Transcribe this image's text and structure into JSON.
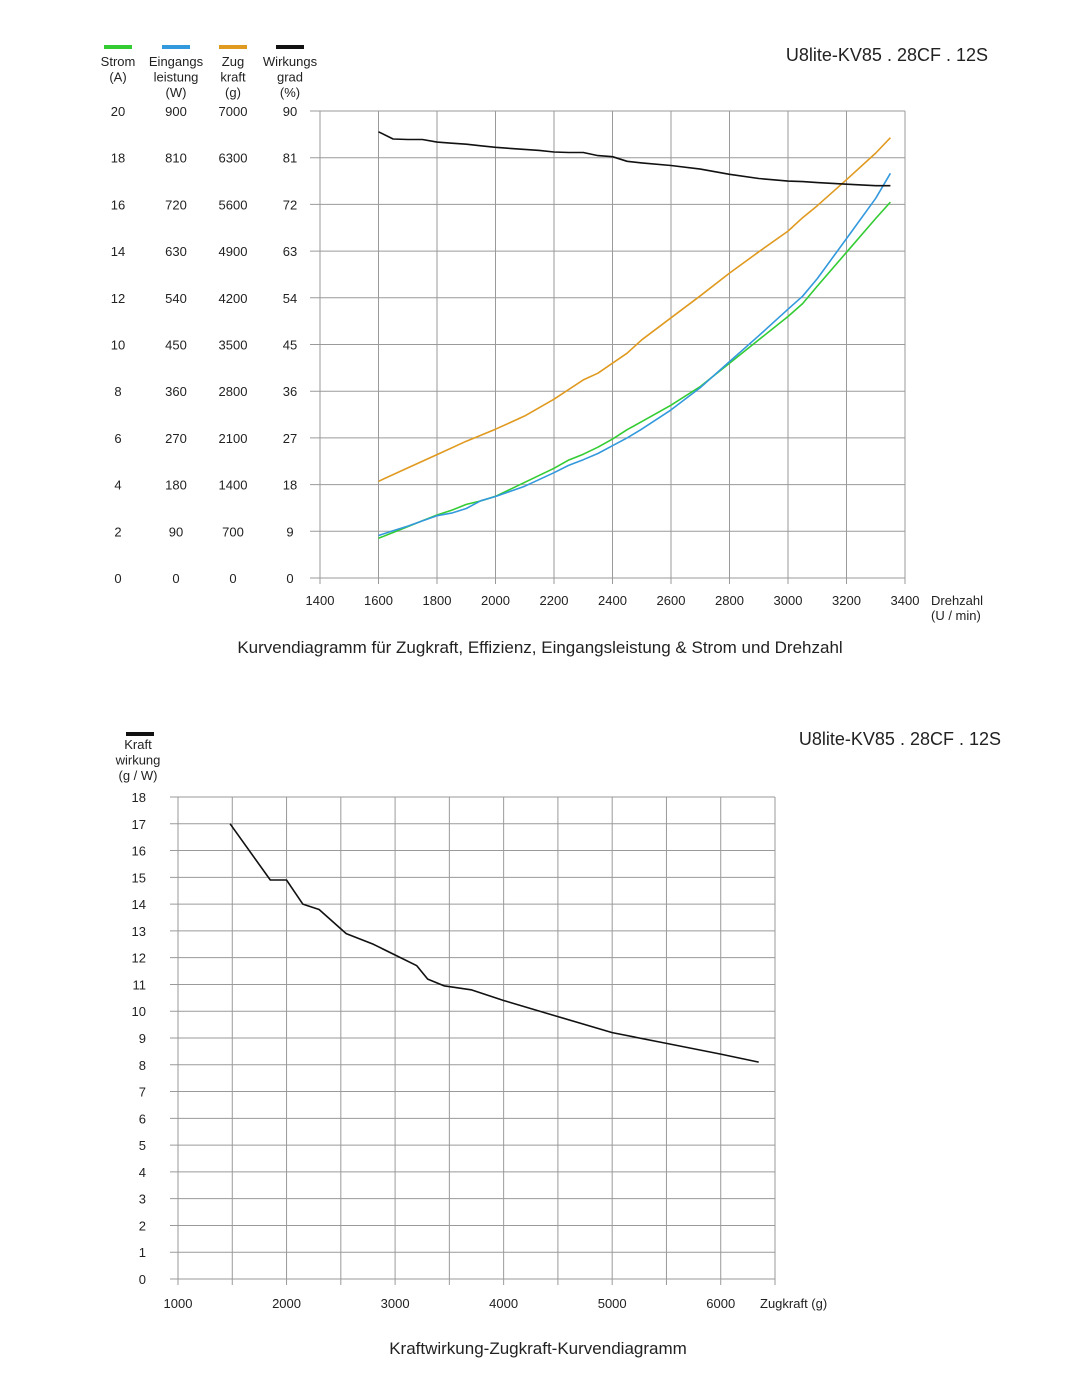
{
  "chart_data": [
    {
      "type": "line",
      "model": "U8lite-KV85 . 28CF . 12S",
      "caption": "Kurvendiagramm für Zugkraft, Effizienz, Eingangsleistung &  Strom und Drehzahl",
      "xlabel": [
        "Drehzahl",
        "(U / min)"
      ],
      "x_ticks": [
        "1400",
        "1600",
        "1800",
        "2000",
        "2200",
        "2400",
        "2600",
        "2800",
        "3000",
        "3200",
        "3400"
      ],
      "xlim": [
        1400,
        3400
      ],
      "legend_position": "top-left",
      "grid": true,
      "y_axes": [
        {
          "key": "strom",
          "header": [
            "Strom",
            "(A)"
          ],
          "color": "#33cc33",
          "max": 20,
          "ticks": [
            "20",
            "18",
            "16",
            "14",
            "12",
            "10",
            "8",
            "6",
            "4",
            "2",
            "0"
          ]
        },
        {
          "key": "eingang",
          "header": [
            "Eingangs",
            "leistung",
            "(W)"
          ],
          "color": "#3399dd",
          "max": 900,
          "ticks": [
            "900",
            "810",
            "720",
            "630",
            "540",
            "450",
            "360",
            "270",
            "180",
            "90",
            "0"
          ]
        },
        {
          "key": "zug",
          "header": [
            "Zug",
            "kraft",
            "(g)"
          ],
          "color": "#e09a20",
          "max": 7000,
          "ticks": [
            "7000",
            "6300",
            "5600",
            "4900",
            "4200",
            "3500",
            "2800",
            "2100",
            "1400",
            "700",
            "0"
          ]
        },
        {
          "key": "wirk",
          "header": [
            "Wirkungs",
            "grad",
            "(%)"
          ],
          "color": "#111111",
          "max": 90,
          "ticks": [
            "90",
            "81",
            "72",
            "63",
            "54",
            "45",
            "36",
            "27",
            "18",
            "9",
            "0"
          ]
        }
      ],
      "series": [
        {
          "axis": "strom",
          "x": [
            1600,
            1650,
            1700,
            1750,
            1800,
            1850,
            1900,
            1950,
            2000,
            2100,
            2200,
            2250,
            2300,
            2350,
            2400,
            2450,
            2500,
            2600,
            2700,
            2800,
            2900,
            3000,
            3050,
            3100,
            3200,
            3300,
            3350
          ],
          "y": [
            1.7,
            1.95,
            2.2,
            2.45,
            2.7,
            2.9,
            3.15,
            3.3,
            3.5,
            4.1,
            4.7,
            5.05,
            5.3,
            5.6,
            5.95,
            6.35,
            6.7,
            7.4,
            8.2,
            9.2,
            10.2,
            11.2,
            11.75,
            12.5,
            13.95,
            15.4,
            16.1
          ]
        },
        {
          "axis": "eingang",
          "x": [
            1600,
            1650,
            1700,
            1750,
            1800,
            1850,
            1900,
            1950,
            2000,
            2100,
            2200,
            2250,
            2300,
            2350,
            2400,
            2450,
            2500,
            2600,
            2700,
            2800,
            2900,
            3000,
            3050,
            3100,
            3200,
            3300,
            3350
          ],
          "y": [
            82,
            91,
            100,
            110,
            120,
            125,
            134,
            149,
            157,
            177,
            203,
            217,
            228,
            240,
            255,
            270,
            287,
            324,
            367,
            417,
            467,
            518,
            543,
            577,
            654,
            732,
            780
          ]
        },
        {
          "axis": "zug",
          "x": [
            1600,
            1700,
            1800,
            1900,
            2000,
            2050,
            2100,
            2200,
            2300,
            2350,
            2400,
            2450,
            2500,
            2600,
            2700,
            2800,
            2900,
            3000,
            3050,
            3100,
            3200,
            3300,
            3350
          ],
          "y": [
            1450,
            1650,
            1850,
            2050,
            2230,
            2330,
            2430,
            2680,
            2970,
            3070,
            3220,
            3370,
            3570,
            3900,
            4230,
            4570,
            4890,
            5200,
            5400,
            5580,
            5970,
            6370,
            6600
          ]
        },
        {
          "axis": "wirk",
          "x": [
            1600,
            1650,
            1700,
            1750,
            1800,
            1850,
            1900,
            1950,
            2000,
            2050,
            2100,
            2150,
            2200,
            2250,
            2300,
            2350,
            2400,
            2450,
            2500,
            2600,
            2700,
            2800,
            2900,
            3000,
            3050,
            3100,
            3200,
            3300,
            3350
          ],
          "y": [
            86,
            84.6,
            84.5,
            84.5,
            84,
            83.8,
            83.6,
            83.3,
            83,
            82.8,
            82.6,
            82.4,
            82.1,
            82,
            82,
            81.4,
            81.2,
            80.3,
            80,
            79.5,
            78.8,
            77.8,
            77,
            76.5,
            76.4,
            76.2,
            75.9,
            75.6,
            75.6
          ]
        }
      ]
    },
    {
      "type": "line",
      "model": "U8lite-KV85 . 28CF . 12S",
      "caption": "Kraftwirkung-Zugkraft-Kurvendiagramm",
      "ylabel": [
        "Kraft",
        "wirkung",
        "(g / W)"
      ],
      "xlabel": "Zugkraft (g)",
      "legend_position": "top-left",
      "line_color": "#111111",
      "grid": true,
      "xlim": [
        1000,
        6500
      ],
      "ylim": [
        0,
        18
      ],
      "x_ticks": [
        "1000",
        "2000",
        "3000",
        "4000",
        "5000",
        "6000"
      ],
      "y_ticks": [
        "0",
        "1",
        "2",
        "3",
        "4",
        "5",
        "6",
        "7",
        "8",
        "9",
        "10",
        "11",
        "12",
        "13",
        "14",
        "15",
        "16",
        "17",
        "18"
      ],
      "series": [
        {
          "x": [
            1480,
            1850,
            1950,
            2000,
            2150,
            2300,
            2550,
            2800,
            3000,
            3200,
            3300,
            3450,
            3700,
            4000,
            4500,
            5000,
            5500,
            6000,
            6350
          ],
          "y": [
            17,
            14.9,
            14.9,
            14.9,
            14,
            13.8,
            12.9,
            12.5,
            12.1,
            11.7,
            11.2,
            10.95,
            10.8,
            10.4,
            9.8,
            9.2,
            8.8,
            8.4,
            8.1
          ]
        }
      ]
    }
  ]
}
